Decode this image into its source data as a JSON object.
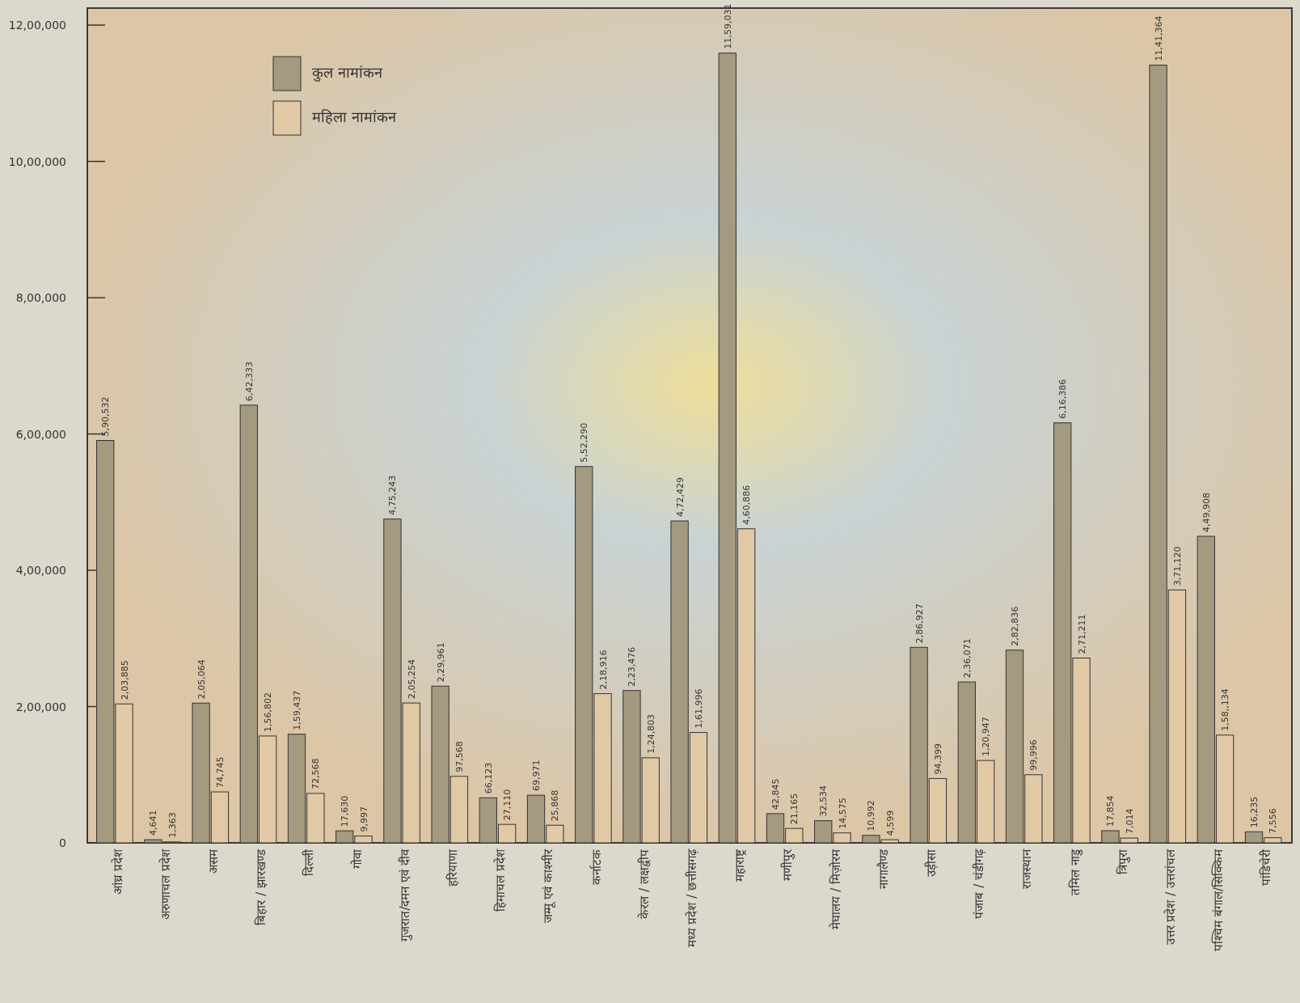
{
  "chart_data": {
    "type": "bar",
    "categories": [
      "आंध्र प्रदेश",
      "अरुणाचल प्रदेश",
      "असम",
      "बिहार / झारखण्ड",
      "दिल्ली",
      "गोवा",
      "गुजरात/दमन एवं दीव",
      "हरियाणा",
      "हिमाचल प्रदेश",
      "जम्मू एवं काश्मीर",
      "कर्नाटक",
      "केरल / लक्षद्वीप",
      "मध्य प्रदेश / छत्तीसगढ़",
      "महाराष्ट्र",
      "मणीपुर",
      "मेघालय / मिज़ोरम",
      "नागालैण्ड",
      "उड़ीसा",
      "पंजाब / चंडीगढ़",
      "राजस्थान",
      "तमिल नाडु",
      "त्रिपुरा",
      "उत्तर प्रदेश / उत्तरांचल",
      "पश्चिम बंगाल/सिक्किम",
      "पांडिचेरी"
    ],
    "series": [
      {
        "name": "कुल नामांकन",
        "color": "#a39a80",
        "values": [
          590532,
          4641,
          205064,
          642333,
          159437,
          17630,
          475243,
          229961,
          66123,
          69971,
          552290,
          223476,
          472429,
          1159031,
          42845,
          32534,
          10992,
          286927,
          236071,
          282836,
          616386,
          17854,
          1141364,
          449908,
          16235
        ],
        "value_labels": [
          "5,90,532",
          "4,641",
          "2,05,064",
          "6,42,333",
          "1,59,437",
          "17,630",
          "4,75,243",
          "2,29,961",
          "66,123",
          "69,971",
          "5,52,290",
          "2,23,476",
          "4,72,429",
          "11,59,031",
          "42,845",
          "32,534",
          "10,992",
          "2,86,927",
          "2,36,071",
          "2,82,836",
          "6,16,386",
          "17,854",
          "11,41,364",
          "4,49,908",
          "16,235"
        ]
      },
      {
        "name": "महिला नामांकन",
        "color": "#e2c9a6",
        "values": [
          203885,
          1363,
          74745,
          156802,
          72568,
          9997,
          205254,
          97568,
          27110,
          25868,
          218916,
          124803,
          161996,
          460886,
          21165,
          14575,
          4599,
          94399,
          120947,
          99996,
          271211,
          7014,
          371120,
          158134,
          7556
        ],
        "value_labels": [
          "2,03,885",
          "1,363",
          "74,745",
          "1,56,802",
          "72,568",
          "9,997",
          "2,05,254",
          "97,568",
          "27,110",
          "25,868",
          "2,18,916",
          "1,24,803",
          "1,61,996",
          "4,60,886",
          "21,165",
          "14,575",
          "4,599",
          "94,399",
          "1,20,947",
          "99,996",
          "2,71,211",
          "7,014",
          "3,71,120",
          "1,58,,134",
          "7,556"
        ]
      }
    ],
    "ylim": [
      0,
      1225000
    ],
    "yticks": [
      0,
      {
        "value": 200000,
        "label": "2,00,000"
      },
      {
        "value": 400000,
        "label": "4,00,000"
      },
      {
        "value": 600000,
        "label": "6,00,000"
      },
      {
        "value": 800000,
        "label": "8,00,000"
      },
      {
        "value": 1000000,
        "label": "10,00,000"
      },
      {
        "value": 1200000,
        "label": "12,00,000"
      }
    ],
    "legend": "top left",
    "grid": false
  }
}
